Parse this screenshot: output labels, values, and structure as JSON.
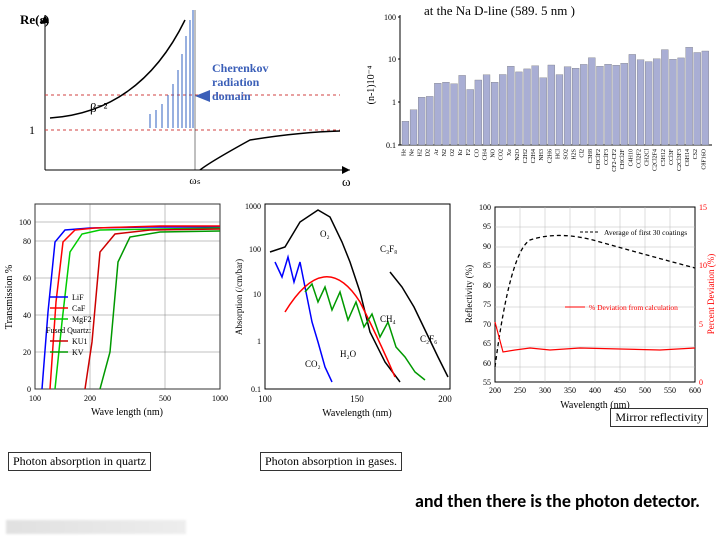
{
  "captions": {
    "top_right": "at the  Na D-line (589. 5 nm )",
    "mirror": "Mirror reflectivity",
    "quartz": "Photon absorption in quartz",
    "gases": "Photon absorption in gases.",
    "bottom": "and then there is the photon detector."
  },
  "dielectric": {
    "ylabel": "Re(ε)",
    "beta_label": "β⁻²",
    "baseline_label": "1",
    "omega_s": "ωₛ",
    "omega": "ω",
    "cherenkov_label1": "Cherenkov",
    "cherenkov_label2": "radiation",
    "cherenkov_label3": "domain",
    "cherenkov_color": "#3b5fb8",
    "axis_color": "#000000",
    "dash_color": "#d04040",
    "spike_color": "#3060c0",
    "curve_color": "#000000"
  },
  "barchart": {
    "ylabel": "(n-1)10⁻⁴",
    "y_ticks": [
      0.1,
      1,
      10,
      100
    ],
    "bar_color": "#a9aed4",
    "axis_color": "#000000",
    "categories": [
      "He",
      "Ne",
      "H2",
      "D2",
      "Ar",
      "N2",
      "O2",
      "Kr",
      "F2",
      "CO",
      "CH4",
      "NO",
      "CO2",
      "Xe",
      "N2O",
      "C2H2",
      "C2H4",
      "NH3",
      "C2H6",
      "HCl",
      "SO2",
      "H2S",
      "Cl2",
      "C3H8",
      "CHClF2",
      "CClF3",
      "CF2-CF2",
      "CHCl2F",
      "C4H10",
      "CCl2F2",
      "CH2Cl",
      "C2Cl2F4",
      "C5H12",
      "CCl3F",
      "C2Cl3F3",
      "C6H14",
      "CS2",
      "C8F16O"
    ],
    "values": [
      0.36,
      0.67,
      1.32,
      1.38,
      2.81,
      2.97,
      2.72,
      4.27,
      2.0,
      3.34,
      4.41,
      2.97,
      4.5,
      7.02,
      5.16,
      6.06,
      7.2,
      3.76,
      7.5,
      4.47,
      6.86,
      6.3,
      7.73,
      11.1,
      7.0,
      7.8,
      7.4,
      8.2,
      13.3,
      10.0,
      9.0,
      10.5,
      17.2,
      10.2,
      11.0,
      19.5,
      14.7,
      16.0
    ]
  },
  "transmission": {
    "xlabel": "Wave length (nm)",
    "ylabel": "Transmission %",
    "x_range": [
      100,
      1000
    ],
    "y_range": [
      0,
      110
    ],
    "x_ticks": [
      100,
      200,
      500,
      1000
    ],
    "y_ticks": [
      0,
      20,
      40,
      60,
      80,
      100
    ],
    "legend_title": "Fused Quartz:",
    "series": [
      {
        "name": "LiF",
        "color": "#0000ff"
      },
      {
        "name": "CaF",
        "color": "#ff0000"
      },
      {
        "name": "MgF2",
        "color": "#00cc00"
      },
      {
        "name": "KU1",
        "color": "#cc0000"
      },
      {
        "name": "KV",
        "color": "#009900"
      }
    ],
    "grid_color": "#333333",
    "bg": "#ffffff"
  },
  "absorption": {
    "xlabel": "Wavelength (nm)",
    "ylabel": "Absorption (/cm/bar)",
    "x_range": [
      100,
      210
    ],
    "y_range": [
      0.1,
      1000
    ],
    "x_ticks": [
      100,
      150,
      200
    ],
    "y_ticks": [
      1,
      10,
      100,
      1000
    ],
    "species": [
      "H2O",
      "O2",
      "CH4",
      "C2F6",
      "CO2"
    ],
    "axis_color": "#000000",
    "colors": {
      "O2": "#0000ff",
      "CH4": "#009900",
      "H2O": "#ff0000",
      "CO2": "#000000",
      "C2F6": "#008800"
    }
  },
  "reflectivity": {
    "xlabel": "Wavelength (nm)",
    "ylabel_left": "Reflectivity (%)",
    "ylabel_right": "Percent Deviation (%)",
    "x_range": [
      200,
      600
    ],
    "x_ticks": [
      200,
      250,
      300,
      350,
      400,
      450,
      500,
      550,
      600
    ],
    "yl_range": [
      55,
      100
    ],
    "yl_ticks": [
      55,
      60,
      65,
      70,
      75,
      80,
      85,
      90,
      95,
      100
    ],
    "yr_range": [
      0,
      15
    ],
    "legend1": "Average of first 30 coatings",
    "legend2": "% Deviation from calculation",
    "avg_color": "#000000",
    "dev_color": "#ff0000",
    "grid_color": "#bbbbbb"
  }
}
